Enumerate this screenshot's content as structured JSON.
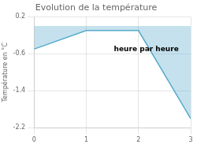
{
  "chart_data": {
    "type": "area",
    "title": "Evolution de la température",
    "ylabel": "Température en °C",
    "x": [
      0,
      1,
      2,
      3
    ],
    "values": [
      -0.5,
      -0.1,
      -0.1,
      -2.0
    ],
    "color": "#55aacc",
    "xlim": [
      0,
      3
    ],
    "ylim": [
      -2.2,
      0.2
    ],
    "xticks": [
      0,
      1,
      2,
      3
    ],
    "yticks": [
      0.2,
      -0.6,
      -1.4,
      -2.2
    ],
    "grid": true,
    "annotations": [
      {
        "text": "heure par heure",
        "x": 2.15,
        "y": -0.5
      }
    ]
  }
}
